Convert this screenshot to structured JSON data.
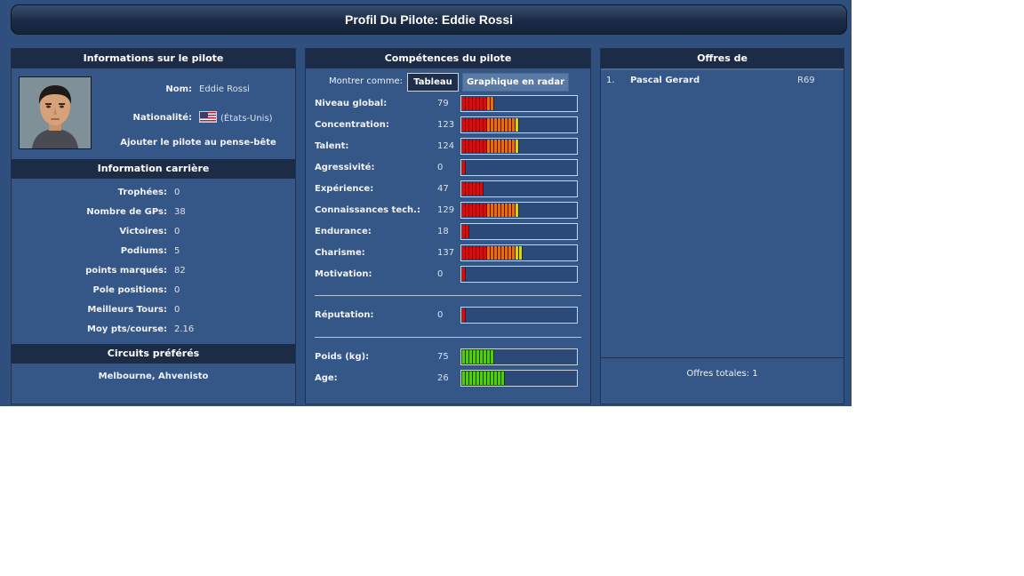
{
  "title": "Profil Du Pilote: Eddie Rossi",
  "left": {
    "header": "Informations sur le pilote",
    "name_label": "Nom:",
    "name_value": "Eddie Rossi",
    "nat_label": "Nationalité:",
    "nat_value": "(États-Unis)",
    "add_link": "Ajouter le pilote au pense-bête",
    "career_header": "Information carrière",
    "career": [
      {
        "label": "Trophées:",
        "value": "0"
      },
      {
        "label": "Nombre de GPs:",
        "value": "38"
      },
      {
        "label": "Victoires:",
        "value": "0"
      },
      {
        "label": "Podiums:",
        "value": "5"
      },
      {
        "label": "points marqués:",
        "value": "82"
      },
      {
        "label": "Pole positions:",
        "value": "0"
      },
      {
        "label": "Meilleurs Tours:",
        "value": "0"
      },
      {
        "label": "Moy pts/course:",
        "value": "2.16"
      }
    ],
    "circuits_header": "Circuits préférés",
    "circuits": "Melbourne, Ahvenisto"
  },
  "mid": {
    "header": "Compétences du pilote",
    "show_as": "Montrer comme:",
    "btn_table": "Tableau",
    "btn_radar": "Graphique en radar",
    "skills": [
      {
        "label": "Niveau global:",
        "value": "79",
        "level": 0.29
      },
      {
        "label": "Concentration:",
        "value": "123",
        "level": 0.5
      },
      {
        "label": "Talent:",
        "value": "124",
        "level": 0.5
      },
      {
        "label": "Agressivité:",
        "value": "0",
        "level": 0.04
      },
      {
        "label": "Expérience:",
        "value": "47",
        "level": 0.19
      },
      {
        "label": "Connaissances tech.:",
        "value": "129",
        "level": 0.5
      },
      {
        "label": "Endurance:",
        "value": "18",
        "level": 0.08
      },
      {
        "label": "Charisme:",
        "value": "137",
        "level": 0.54
      },
      {
        "label": "Motivation:",
        "value": "0",
        "level": 0.04
      }
    ],
    "reputation": {
      "label": "Réputation:",
      "value": "0",
      "level": 0.04
    },
    "physical": [
      {
        "label": "Poids (kg):",
        "value": "75",
        "level": 0.3
      },
      {
        "label": "Age:",
        "value": "26",
        "level": 0.38
      }
    ]
  },
  "right": {
    "header": "Offres de",
    "offers": [
      {
        "rank": "1.",
        "name": "Pascal Gerard",
        "code": "R69"
      }
    ],
    "total": "Offres totales: 1"
  },
  "colors": {
    "background": "#2f4f7e",
    "panel": "#345787",
    "header": "#1c2c46",
    "bar_red": "#d01010",
    "bar_orange": "#e07018",
    "bar_yellow": "#d8d020",
    "bar_green": "#58c818"
  }
}
